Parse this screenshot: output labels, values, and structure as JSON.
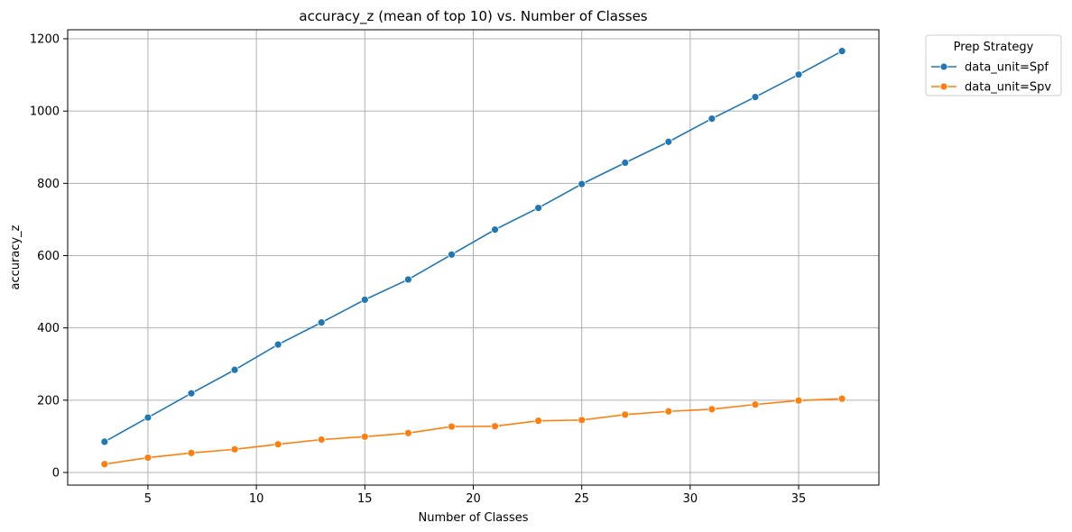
{
  "chart_data": {
    "type": "line",
    "title": "accuracy_z (mean of top 10) vs. Number of Classes",
    "xlabel": "Number of Classes",
    "ylabel": "accuracy_z",
    "xlim": [
      1.3,
      38.7
    ],
    "ylim": [
      -35,
      1225
    ],
    "xticks": [
      5,
      10,
      15,
      20,
      25,
      30,
      35
    ],
    "yticks": [
      0,
      200,
      400,
      600,
      800,
      1000,
      1200
    ],
    "grid": true,
    "legend": {
      "title": "Prep Strategy",
      "placement": "outside-top-right"
    },
    "x": [
      3,
      5,
      7,
      9,
      11,
      13,
      15,
      17,
      19,
      21,
      23,
      25,
      27,
      29,
      31,
      33,
      35,
      37
    ],
    "series": [
      {
        "name": "data_unit=Spf",
        "color": "#1f77b4",
        "values": [
          85,
          152,
          219,
          284,
          354,
          415,
          478,
          534,
          603,
          672,
          732,
          798,
          857,
          915,
          979,
          1039,
          1101,
          1166
        ]
      },
      {
        "name": "data_unit=Spv",
        "color": "#ff7f0e",
        "values": [
          23,
          41,
          54,
          64,
          78,
          91,
          99,
          109,
          127,
          128,
          143,
          145,
          160,
          169,
          175,
          188,
          199,
          204
        ]
      }
    ]
  }
}
